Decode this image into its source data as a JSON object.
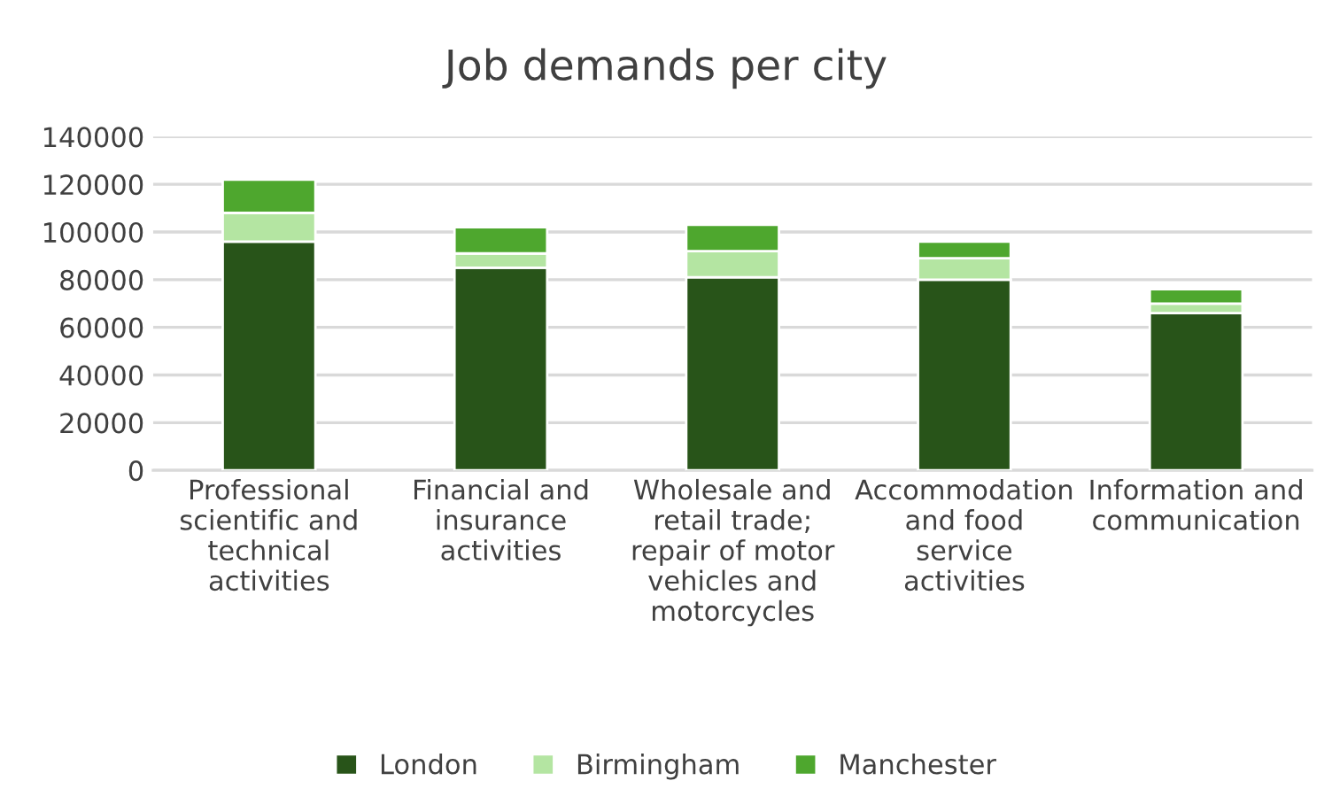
{
  "chart_data": {
    "type": "bar",
    "title": "Job demands per city",
    "stacked": true,
    "categories": [
      "Professional scientific and technical activities",
      "Financial and insurance activities",
      "Wholesale and retail trade; repair of motor vehicles and motorcycles",
      "Accommodation and food service activities",
      "Information and communication"
    ],
    "series": [
      {
        "name": "London",
        "color": "#285419",
        "values": [
          96000,
          85000,
          81000,
          80000,
          66000
        ]
      },
      {
        "name": "Birmingham",
        "color": "#b4e5a2",
        "values": [
          12000,
          6000,
          11000,
          9000,
          4000
        ]
      },
      {
        "name": "Manchester",
        "color": "#4ea72e",
        "values": [
          14000,
          11000,
          11000,
          7000,
          6000
        ]
      }
    ],
    "ylim": [
      0,
      140000
    ],
    "yticks": [
      0,
      20000,
      40000,
      60000,
      80000,
      100000,
      120000,
      140000
    ],
    "grid": "y",
    "legend": "bottom"
  }
}
